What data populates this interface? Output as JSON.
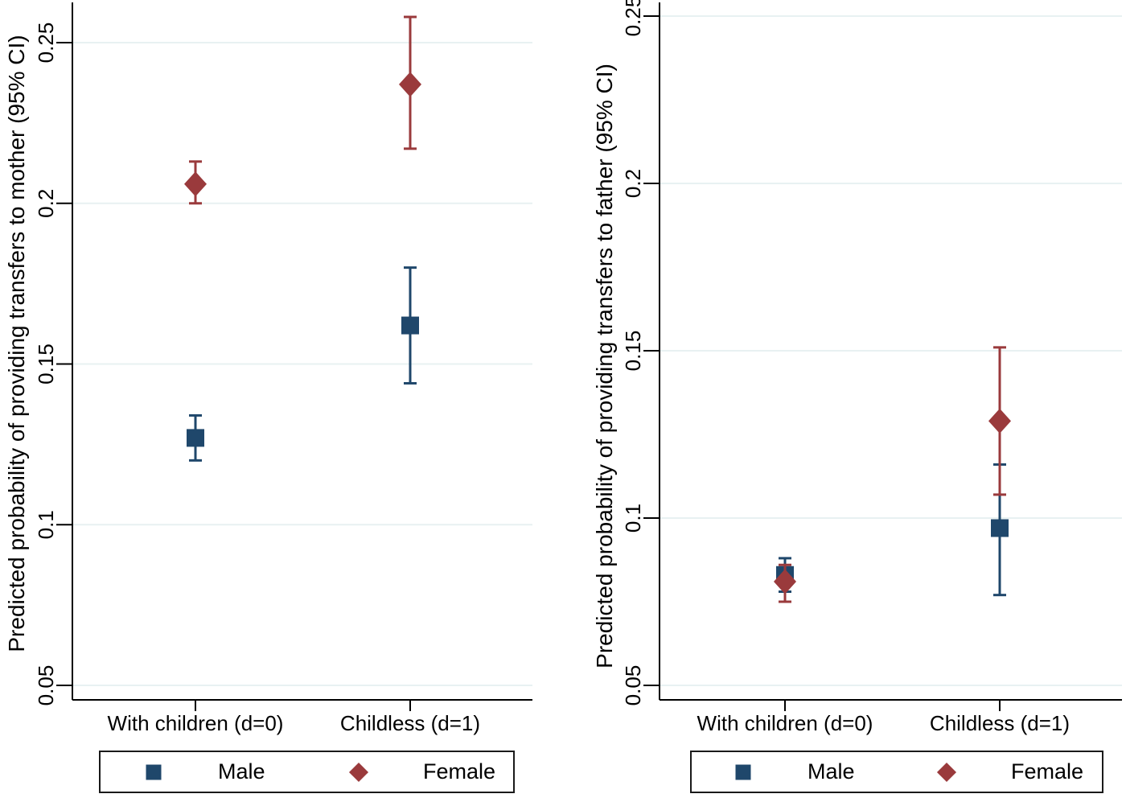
{
  "figure": {
    "background": "#ffffff",
    "colors": {
      "male": "#1f476b",
      "female": "#9a3a3c",
      "gridline": "#e8f1f2",
      "axis": "#000000",
      "text": "#000000",
      "legend_border": "#1a1a1a"
    }
  },
  "chart_data": [
    {
      "type": "scatter",
      "panel": "left",
      "title": "",
      "xlabel": "",
      "ylabel": "Predicted probability of providing transfers to mother (95% CI)",
      "categories": [
        "With children (d=0)",
        "Childless (d=1)"
      ],
      "ytick_values": [
        0.05,
        0.1,
        0.15,
        0.2,
        0.25
      ],
      "ytick_labels": [
        "0.05",
        "0.1",
        "0.15",
        "0.2",
        "0.25"
      ],
      "ylim": [
        0.045,
        0.263
      ],
      "grid": true,
      "legend": {
        "position": "bottom",
        "entries": [
          "Male",
          "Female"
        ]
      },
      "series": [
        {
          "name": "Male",
          "marker": "square",
          "color": "#1f476b",
          "points": [
            {
              "category": "With children (d=0)",
              "value": 0.127,
              "ci_low": 0.12,
              "ci_high": 0.134
            },
            {
              "category": "Childless (d=1)",
              "value": 0.162,
              "ci_low": 0.144,
              "ci_high": 0.18
            }
          ]
        },
        {
          "name": "Female",
          "marker": "diamond",
          "color": "#9a3a3c",
          "points": [
            {
              "category": "With children (d=0)",
              "value": 0.206,
              "ci_low": 0.2,
              "ci_high": 0.213
            },
            {
              "category": "Childless (d=1)",
              "value": 0.237,
              "ci_low": 0.217,
              "ci_high": 0.258
            }
          ]
        }
      ]
    },
    {
      "type": "scatter",
      "panel": "right",
      "title": "",
      "xlabel": "",
      "ylabel": "Predicted probability of providing transfers to father (95% CI)",
      "categories": [
        "With children (d=0)",
        "Childless (d=1)"
      ],
      "ytick_values": [
        0.05,
        0.1,
        0.15,
        0.2,
        0.25
      ],
      "ytick_labels": [
        "0.05",
        "0.1",
        "0.15",
        "0.2",
        "0.25"
      ],
      "ylim": [
        0.045,
        0.256
      ],
      "grid": true,
      "legend": {
        "position": "bottom",
        "entries": [
          "Male",
          "Female"
        ]
      },
      "series": [
        {
          "name": "Male",
          "marker": "square",
          "color": "#1f476b",
          "points": [
            {
              "category": "With children (d=0)",
              "value": 0.083,
              "ci_low": 0.078,
              "ci_high": 0.088
            },
            {
              "category": "Childless (d=1)",
              "value": 0.097,
              "ci_low": 0.077,
              "ci_high": 0.116
            }
          ]
        },
        {
          "name": "Female",
          "marker": "diamond",
          "color": "#9a3a3c",
          "points": [
            {
              "category": "With children (d=0)",
              "value": 0.081,
              "ci_low": 0.075,
              "ci_high": 0.086
            },
            {
              "category": "Childless (d=1)",
              "value": 0.129,
              "ci_low": 0.107,
              "ci_high": 0.151
            }
          ]
        }
      ]
    }
  ]
}
